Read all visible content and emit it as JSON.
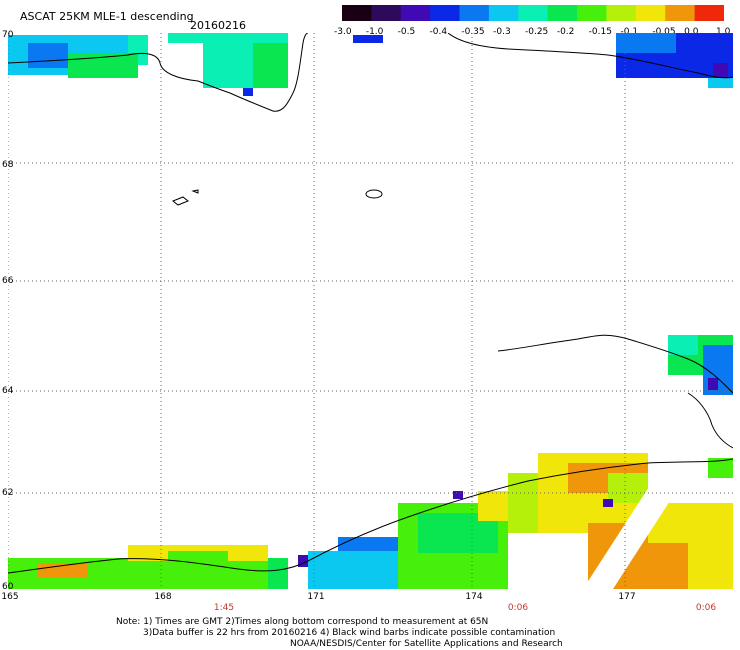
{
  "header": {
    "title": "ASCAT 25KM MLE-1 descending",
    "date": "20160216"
  },
  "colorbar": {
    "labels": [
      "-3.0",
      "-1.0",
      "-0.5",
      "-0.4",
      "-0.35",
      "-0.3",
      "-0.25",
      "-0.2",
      "-0.15",
      "-0.1",
      "-0.05",
      "0.0",
      "1.0"
    ],
    "colors": [
      "#1a0014",
      "#2d0a5a",
      "#3f0ab4",
      "#0a28e6",
      "#0a78f0",
      "#0ac8f0",
      "#0af0b4",
      "#0ae650",
      "#46f00a",
      "#b4f00a",
      "#f0e60a",
      "#f0960a",
      "#f0280a"
    ]
  },
  "map": {
    "lat_labels": [
      "70",
      "68",
      "66",
      "64",
      "62",
      "60"
    ],
    "lon_labels": [
      "165",
      "168",
      "171",
      "174",
      "177"
    ],
    "time_labels": [
      "1:45",
      "0:06",
      "0:06"
    ],
    "colors": {
      "coast": "#000000",
      "grid": "#666666",
      "time_text": "#c0392b"
    }
  },
  "footer": {
    "line1": "Note: 1) Times are GMT 2)Times along bottom correspond to measurement at 65N",
    "line2": "3)Data buffer is 22 hrs from 20160216 4) Black wind barbs indicate possible contamination",
    "line3": "NOAA/NESDIS/Center for Satellite Applications and Research"
  }
}
